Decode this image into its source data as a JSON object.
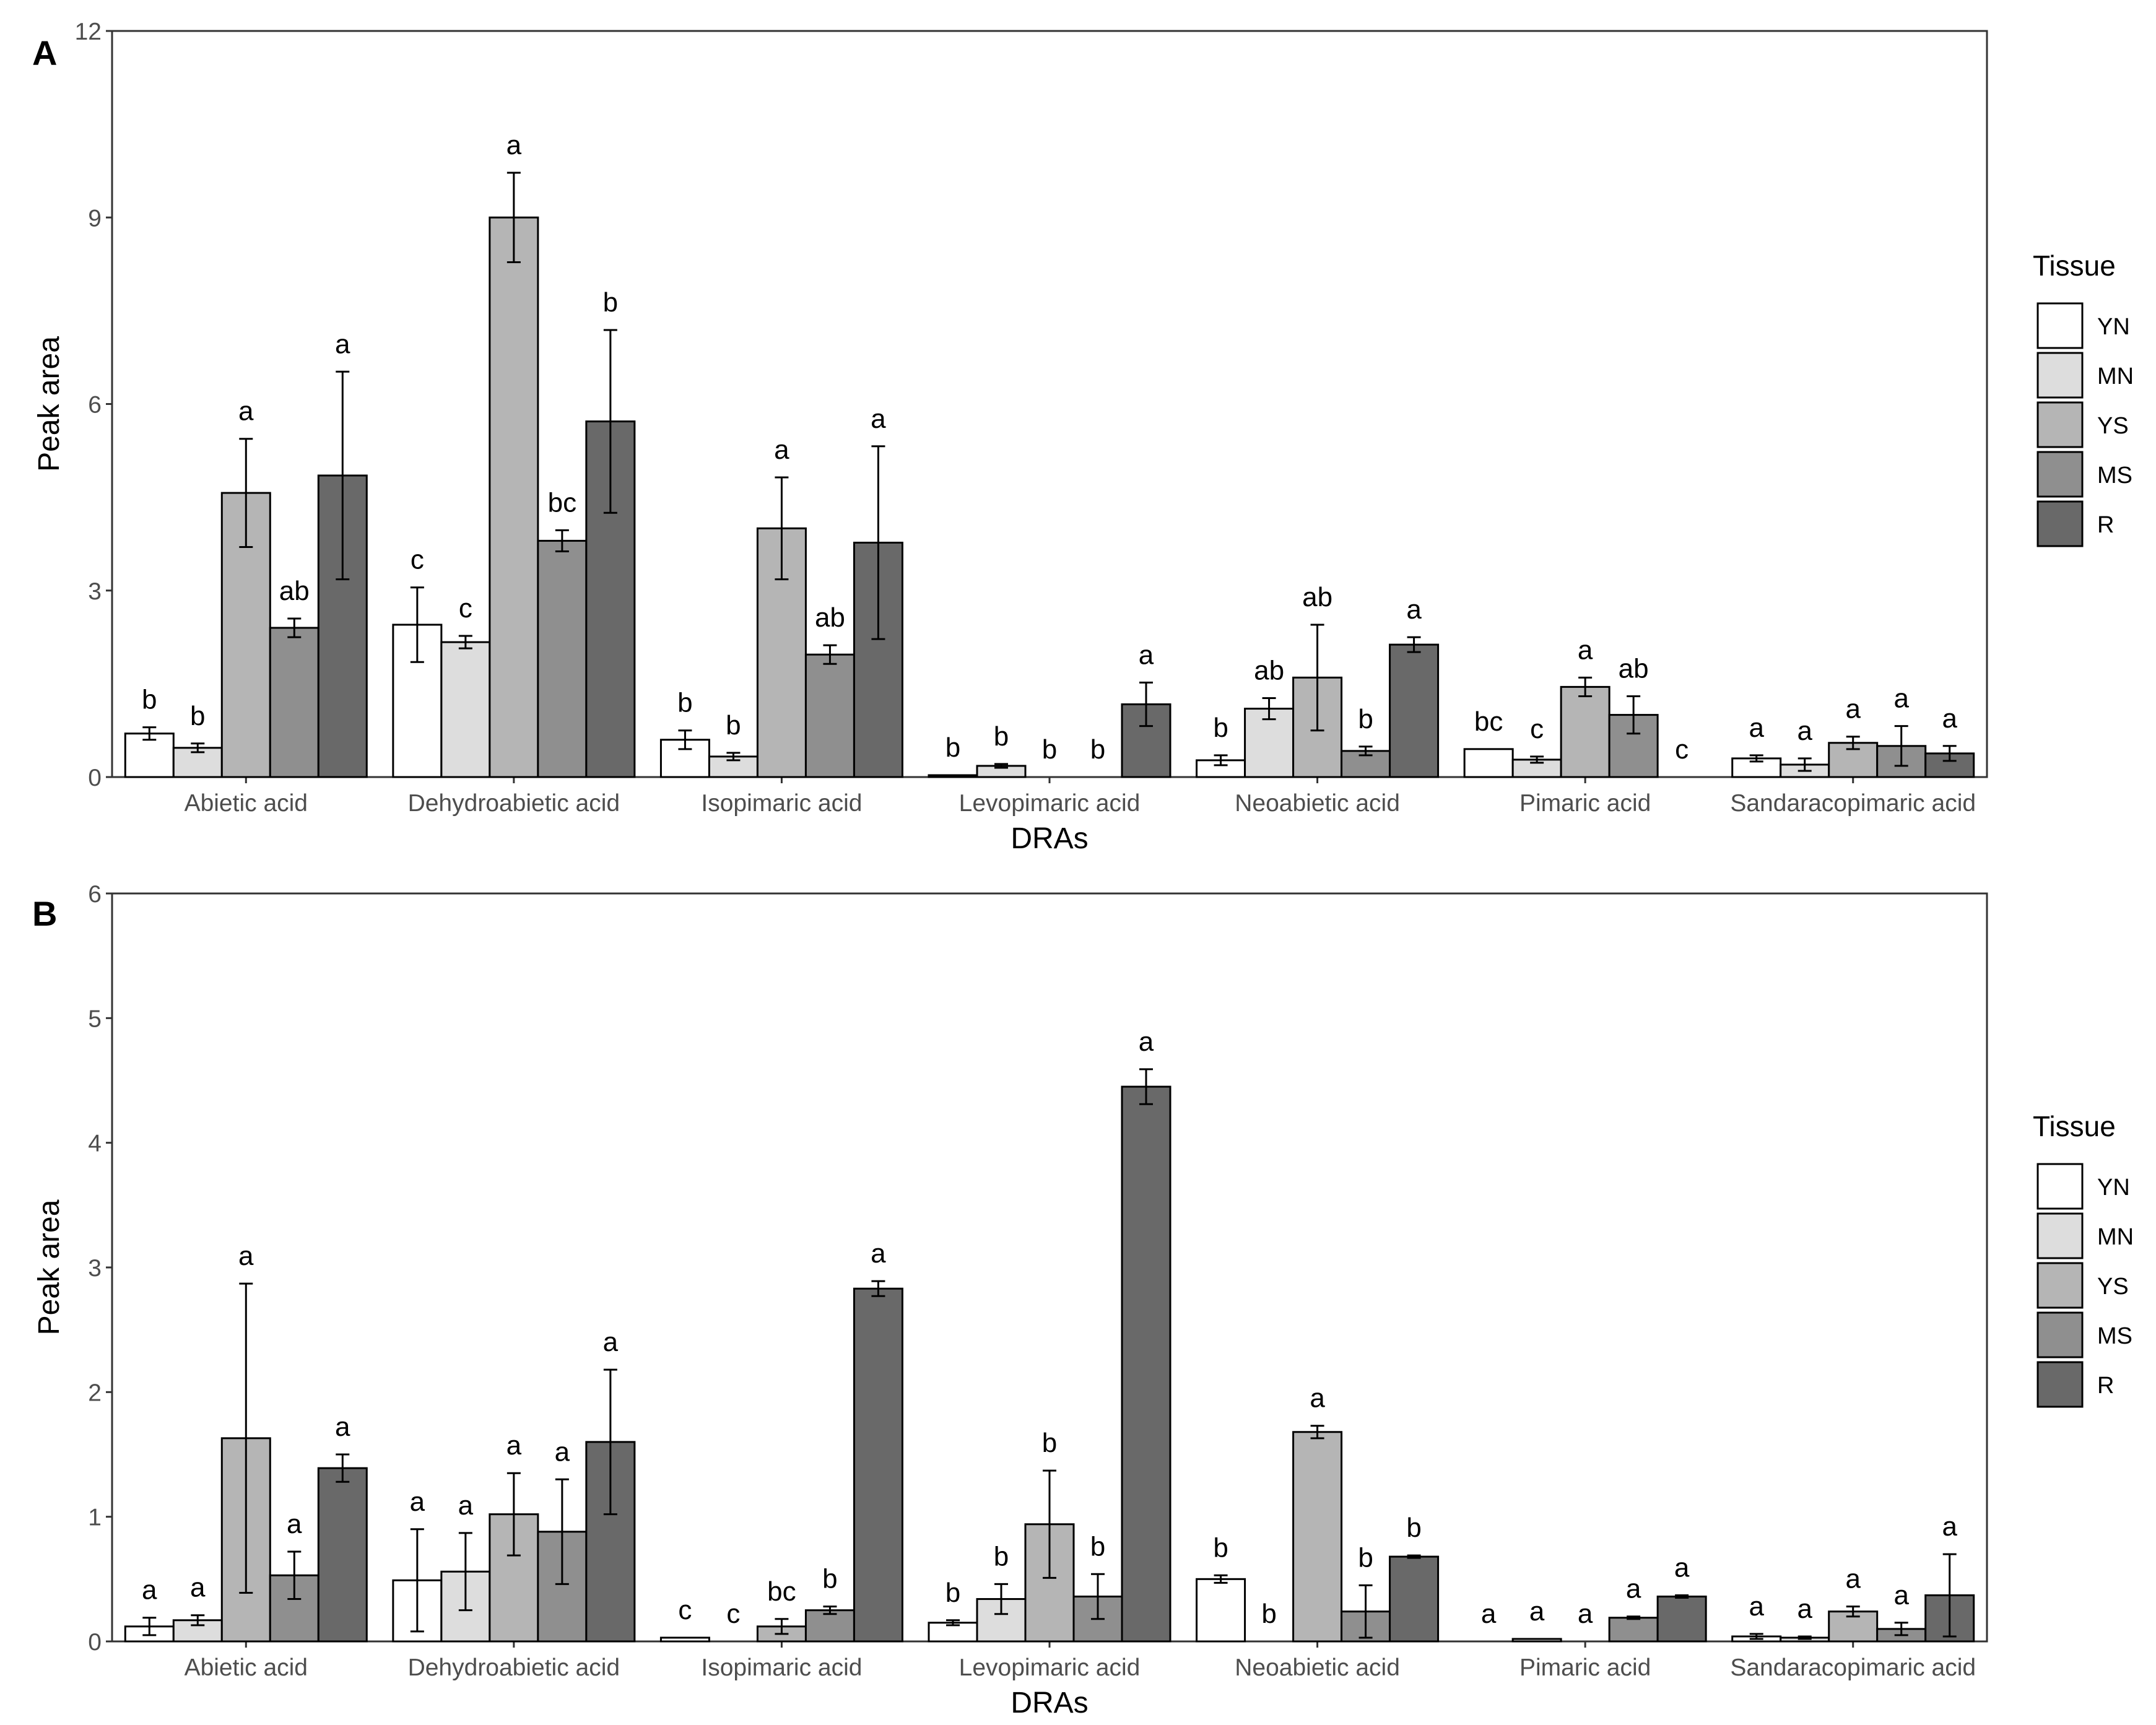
{
  "legend": {
    "title": "Tissue",
    "items": [
      {
        "name": "YN",
        "color": "#ffffff"
      },
      {
        "name": "MN",
        "color": "#dddddd"
      },
      {
        "name": "YS",
        "color": "#b5b5b5"
      },
      {
        "name": "MS",
        "color": "#8f8f8f"
      },
      {
        "name": "R",
        "color": "#696969"
      }
    ]
  },
  "chart_data": [
    {
      "panel": "A",
      "type": "bar",
      "xlabel": "DRAs",
      "ylabel": "Peak area",
      "ylim": [
        0,
        12
      ],
      "yticks": [
        0,
        3,
        6,
        9,
        12
      ],
      "categories": [
        "Abietic acid",
        "Dehydroabietic acid",
        "Isopimaric acid",
        "Levopimaric acid",
        "Neoabietic acid",
        "Pimaric acid",
        "Sandaracopimaric acid"
      ],
      "series": [
        {
          "name": "YN",
          "values": [
            0.7,
            2.45,
            0.6,
            0.03,
            0.27,
            0.45,
            0.3
          ],
          "errors": [
            0.1,
            0.6,
            0.15,
            0.0,
            0.08,
            0.0,
            0.05
          ],
          "letters": [
            "b",
            "c",
            "b",
            "b",
            "b",
            "bc",
            "a"
          ]
        },
        {
          "name": "MN",
          "values": [
            0.47,
            2.17,
            0.33,
            0.18,
            1.1,
            0.28,
            0.2
          ],
          "errors": [
            0.07,
            0.1,
            0.06,
            0.03,
            0.17,
            0.05,
            0.1
          ],
          "letters": [
            "b",
            "c",
            "b",
            "b",
            "ab",
            "c",
            "a"
          ]
        },
        {
          "name": "YS",
          "values": [
            4.57,
            9.0,
            4.0,
            0.0,
            1.6,
            1.45,
            0.55
          ],
          "errors": [
            0.87,
            0.72,
            0.82,
            0.0,
            0.85,
            0.15,
            0.1
          ],
          "letters": [
            "a",
            "a",
            "a",
            "b",
            "ab",
            "a",
            "a"
          ]
        },
        {
          "name": "MS",
          "values": [
            2.4,
            3.8,
            1.97,
            0.0,
            0.42,
            1.0,
            0.5
          ],
          "errors": [
            0.15,
            0.17,
            0.15,
            0.0,
            0.07,
            0.3,
            0.32
          ],
          "letters": [
            "ab",
            "bc",
            "ab",
            "b",
            "b",
            "ab",
            "a"
          ]
        },
        {
          "name": "R",
          "values": [
            4.85,
            5.72,
            3.77,
            1.17,
            2.13,
            0.0,
            0.38
          ],
          "errors": [
            1.67,
            1.47,
            1.55,
            0.35,
            0.12,
            0.0,
            0.12
          ],
          "letters": [
            "a",
            "b",
            "a",
            "a",
            "a",
            "c",
            "a"
          ]
        }
      ]
    },
    {
      "panel": "B",
      "type": "bar",
      "xlabel": "DRAs",
      "ylabel": "Peak area",
      "ylim": [
        0,
        6
      ],
      "yticks": [
        0,
        1,
        2,
        3,
        4,
        5,
        6
      ],
      "categories": [
        "Abietic acid",
        "Dehydroabietic acid",
        "Isopimaric acid",
        "Levopimaric acid",
        "Neoabietic acid",
        "Pimaric acid",
        "Sandaracopimaric acid"
      ],
      "series": [
        {
          "name": "YN",
          "values": [
            0.12,
            0.49,
            0.03,
            0.15,
            0.5,
            0.0,
            0.04
          ],
          "errors": [
            0.07,
            0.41,
            0.0,
            0.02,
            0.03,
            0.0,
            0.02
          ],
          "letters": [
            "a",
            "a",
            "c",
            "b",
            "b",
            "a",
            "a"
          ]
        },
        {
          "name": "MN",
          "values": [
            0.17,
            0.56,
            0.0,
            0.34,
            0.0,
            0.02,
            0.03
          ],
          "errors": [
            0.04,
            0.31,
            0.0,
            0.12,
            0.0,
            0.0,
            0.01
          ],
          "letters": [
            "a",
            "a",
            "c",
            "b",
            "b",
            "a",
            "a"
          ]
        },
        {
          "name": "YS",
          "values": [
            1.63,
            1.02,
            0.12,
            0.94,
            1.68,
            0.0,
            0.24
          ],
          "errors": [
            1.24,
            0.33,
            0.06,
            0.43,
            0.05,
            0.0,
            0.04
          ],
          "letters": [
            "a",
            "a",
            "bc",
            "b",
            "a",
            "a",
            "a"
          ]
        },
        {
          "name": "MS",
          "values": [
            0.53,
            0.88,
            0.25,
            0.36,
            0.24,
            0.19,
            0.1
          ],
          "errors": [
            0.19,
            0.42,
            0.03,
            0.18,
            0.21,
            0.01,
            0.05
          ],
          "letters": [
            "a",
            "a",
            "b",
            "b",
            "b",
            "a",
            "a"
          ]
        },
        {
          "name": "R",
          "values": [
            1.39,
            1.6,
            2.83,
            4.45,
            0.68,
            0.36,
            0.37
          ],
          "errors": [
            0.11,
            0.58,
            0.06,
            0.14,
            0.01,
            0.01,
            0.33
          ],
          "letters": [
            "a",
            "a",
            "a",
            "a",
            "b",
            "a",
            "a"
          ]
        }
      ]
    }
  ]
}
